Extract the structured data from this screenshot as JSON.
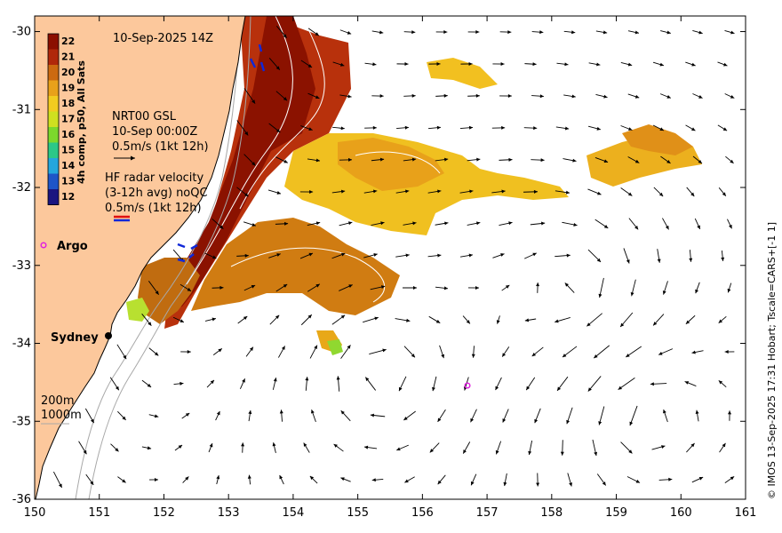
{
  "map": {
    "lon_range": [
      150,
      161
    ],
    "lat_range": [
      -36,
      -29.8
    ],
    "x_ticks": [
      "150",
      "151",
      "152",
      "153",
      "154",
      "155",
      "156",
      "157",
      "158",
      "159",
      "160",
      "161"
    ],
    "y_ticks": [
      "-30",
      "-31",
      "-32",
      "-33",
      "-34",
      "-35",
      "-36"
    ],
    "land_color": "#fcc89c"
  },
  "title": "10-Sep-2025 14Z",
  "colorbar": {
    "label": "4h comp, p50, All Sats",
    "ticks": [
      "22",
      "21",
      "20",
      "19",
      "18",
      "17",
      "16",
      "15",
      "14",
      "13",
      "12"
    ],
    "colors": [
      "#8b0f00",
      "#b0280a",
      "#cc6a10",
      "#e8a11a",
      "#f2cc20",
      "#cfe020",
      "#7cd82c",
      "#2cc888",
      "#25a6dd",
      "#1f55c8",
      "#1a1580"
    ]
  },
  "legend": {
    "gsl_lines": [
      "NRT00 GSL",
      "10-Sep 00:00Z",
      "0.5m/s (1kt 12h)"
    ],
    "hf_lines": [
      "HF radar velocity",
      "(3-12h avg) noQC",
      "0.5m/s (1kt 12h)"
    ],
    "argo_label": "Argo",
    "isobaths": [
      "200m",
      "1000m"
    ]
  },
  "places": {
    "sydney": "Sydney"
  },
  "credit": "© IMOS 13-Sep-2025 17:31 Hobart; Tscale=CARS+[-1 1]"
}
